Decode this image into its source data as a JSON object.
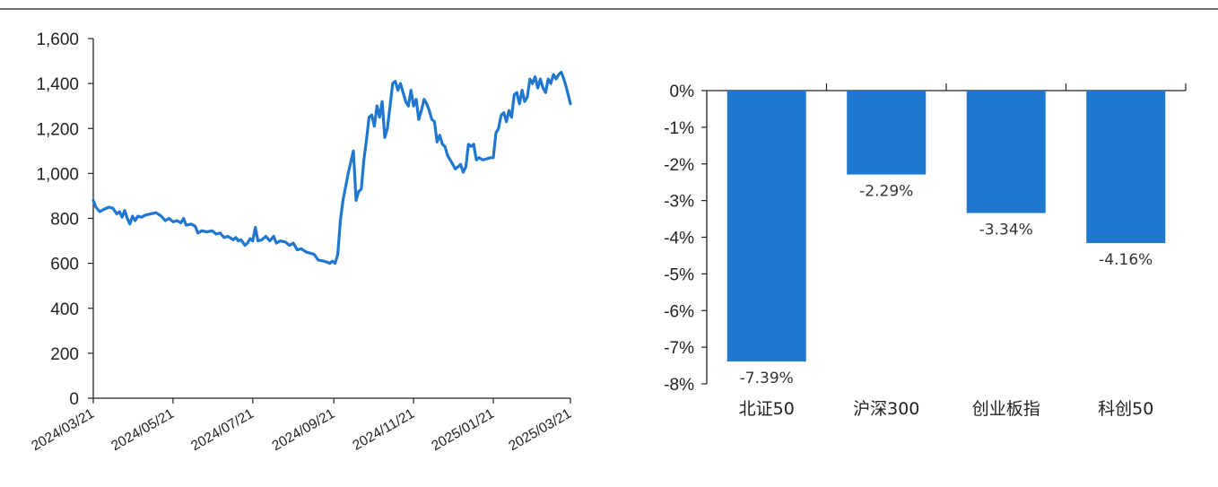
{
  "chart_data": [
    {
      "type": "line",
      "title": "",
      "xlabel": "",
      "ylabel": "",
      "ylim": [
        0,
        1600
      ],
      "yticks": [
        0,
        200,
        400,
        600,
        800,
        1000,
        1200,
        1400,
        1600
      ],
      "ytick_labels": [
        "0",
        "200",
        "400",
        "600",
        "800",
        "1,000",
        "1,200",
        "1,400",
        "1,600"
      ],
      "xticks": [
        "2024/03/21",
        "2024/05/21",
        "2024/07/21",
        "2024/09/21",
        "2024/11/21",
        "2025/01/21",
        "2025/03/21"
      ],
      "grid": false,
      "line_color": "#1f77d0",
      "series": [
        {
          "points": [
            [
              "2024/03/21",
              880
            ],
            [
              "2024/03/23",
              850
            ],
            [
              "2024/03/26",
              830
            ],
            [
              "2024/03/29",
              840
            ],
            [
              "2024/04/02",
              850
            ],
            [
              "2024/04/05",
              845
            ],
            [
              "2024/04/08",
              820
            ],
            [
              "2024/04/10",
              830
            ],
            [
              "2024/04/12",
              805
            ],
            [
              "2024/04/14",
              835
            ],
            [
              "2024/04/16",
              800
            ],
            [
              "2024/04/18",
              775
            ],
            [
              "2024/04/20",
              810
            ],
            [
              "2024/04/22",
              790
            ],
            [
              "2024/04/24",
              810
            ],
            [
              "2024/04/27",
              805
            ],
            [
              "2024/04/30",
              815
            ],
            [
              "2024/05/04",
              820
            ],
            [
              "2024/05/08",
              825
            ],
            [
              "2024/05/12",
              810
            ],
            [
              "2024/05/15",
              790
            ],
            [
              "2024/05/18",
              800
            ],
            [
              "2024/05/21",
              785
            ],
            [
              "2024/05/24",
              790
            ],
            [
              "2024/05/27",
              780
            ],
            [
              "2024/05/29",
              800
            ],
            [
              "2024/05/31",
              770
            ],
            [
              "2024/06/04",
              775
            ],
            [
              "2024/06/07",
              765
            ],
            [
              "2024/06/09",
              735
            ],
            [
              "2024/06/12",
              745
            ],
            [
              "2024/06/16",
              740
            ],
            [
              "2024/06/20",
              745
            ],
            [
              "2024/06/23",
              730
            ],
            [
              "2024/06/26",
              735
            ],
            [
              "2024/06/29",
              715
            ],
            [
              "2024/07/02",
              720
            ],
            [
              "2024/07/06",
              705
            ],
            [
              "2024/07/08",
              715
            ],
            [
              "2024/07/10",
              700
            ],
            [
              "2024/07/12",
              705
            ],
            [
              "2024/07/15",
              680
            ],
            [
              "2024/07/17",
              690
            ],
            [
              "2024/07/19",
              710
            ],
            [
              "2024/07/21",
              700
            ],
            [
              "2024/07/23",
              760
            ],
            [
              "2024/07/25",
              700
            ],
            [
              "2024/07/28",
              705
            ],
            [
              "2024/07/31",
              720
            ],
            [
              "2024/08/03",
              700
            ],
            [
              "2024/08/06",
              720
            ],
            [
              "2024/08/08",
              690
            ],
            [
              "2024/08/11",
              700
            ],
            [
              "2024/08/15",
              695
            ],
            [
              "2024/08/18",
              680
            ],
            [
              "2024/08/21",
              690
            ],
            [
              "2024/08/24",
              660
            ],
            [
              "2024/08/27",
              665
            ],
            [
              "2024/08/31",
              650
            ],
            [
              "2024/09/03",
              645
            ],
            [
              "2024/09/06",
              640
            ],
            [
              "2024/09/09",
              615
            ],
            [
              "2024/09/13",
              610
            ],
            [
              "2024/09/16",
              605
            ],
            [
              "2024/09/18",
              600
            ],
            [
              "2024/09/20",
              610
            ],
            [
              "2024/09/22",
              600
            ],
            [
              "2024/09/24",
              640
            ],
            [
              "2024/09/26",
              790
            ],
            [
              "2024/09/28",
              880
            ],
            [
              "2024/09/30",
              940
            ],
            [
              "2024/10/02",
              1000
            ],
            [
              "2024/10/04",
              1050
            ],
            [
              "2024/10/06",
              1100
            ],
            [
              "2024/10/08",
              880
            ],
            [
              "2024/10/10",
              920
            ],
            [
              "2024/10/12",
              930
            ],
            [
              "2024/10/14",
              1060
            ],
            [
              "2024/10/16",
              1150
            ],
            [
              "2024/10/18",
              1250
            ],
            [
              "2024/10/20",
              1260
            ],
            [
              "2024/10/22",
              1210
            ],
            [
              "2024/10/24",
              1300
            ],
            [
              "2024/10/26",
              1250
            ],
            [
              "2024/10/28",
              1320
            ],
            [
              "2024/10/30",
              1160
            ],
            [
              "2024/11/01",
              1200
            ],
            [
              "2024/11/03",
              1300
            ],
            [
              "2024/11/05",
              1400
            ],
            [
              "2024/11/07",
              1410
            ],
            [
              "2024/11/09",
              1370
            ],
            [
              "2024/11/11",
              1400
            ],
            [
              "2024/11/13",
              1360
            ],
            [
              "2024/11/15",
              1320
            ],
            [
              "2024/11/17",
              1300
            ],
            [
              "2024/11/19",
              1370
            ],
            [
              "2024/11/21",
              1300
            ],
            [
              "2024/11/23",
              1330
            ],
            [
              "2024/11/25",
              1240
            ],
            [
              "2024/11/27",
              1280
            ],
            [
              "2024/11/29",
              1330
            ],
            [
              "2024/12/01",
              1310
            ],
            [
              "2024/12/03",
              1280
            ],
            [
              "2024/12/05",
              1240
            ],
            [
              "2024/12/07",
              1230
            ],
            [
              "2024/12/09",
              1140
            ],
            [
              "2024/12/11",
              1170
            ],
            [
              "2024/12/13",
              1130
            ],
            [
              "2024/12/15",
              1120
            ],
            [
              "2024/12/17",
              1080
            ],
            [
              "2024/12/19",
              1060
            ],
            [
              "2024/12/21",
              1040
            ],
            [
              "2024/12/23",
              1020
            ],
            [
              "2024/12/25",
              1030
            ],
            [
              "2024/12/27",
              1040
            ],
            [
              "2024/12/29",
              1005
            ],
            [
              "2024/12/31",
              1030
            ],
            [
              "2025/01/02",
              1130
            ],
            [
              "2025/01/04",
              1120
            ],
            [
              "2025/01/06",
              1130
            ],
            [
              "2025/01/08",
              1060
            ],
            [
              "2025/01/10",
              1070
            ],
            [
              "2025/01/13",
              1060
            ],
            [
              "2025/01/16",
              1065
            ],
            [
              "2025/01/19",
              1070
            ],
            [
              "2025/01/21",
              1070
            ],
            [
              "2025/01/23",
              1180
            ],
            [
              "2025/01/25",
              1200
            ],
            [
              "2025/01/27",
              1260
            ],
            [
              "2025/01/29",
              1270
            ],
            [
              "2025/01/31",
              1230
            ],
            [
              "2025/02/02",
              1280
            ],
            [
              "2025/02/04",
              1250
            ],
            [
              "2025/02/06",
              1350
            ],
            [
              "2025/02/08",
              1360
            ],
            [
              "2025/02/10",
              1310
            ],
            [
              "2025/02/12",
              1370
            ],
            [
              "2025/02/14",
              1320
            ],
            [
              "2025/02/16",
              1340
            ],
            [
              "2025/02/18",
              1420
            ],
            [
              "2025/02/20",
              1400
            ],
            [
              "2025/02/22",
              1430
            ],
            [
              "2025/02/24",
              1380
            ],
            [
              "2025/02/26",
              1420
            ],
            [
              "2025/02/28",
              1380
            ],
            [
              "2025/03/02",
              1360
            ],
            [
              "2025/03/04",
              1420
            ],
            [
              "2025/03/06",
              1400
            ],
            [
              "2025/03/08",
              1440
            ],
            [
              "2025/03/10",
              1420
            ],
            [
              "2025/03/12",
              1440
            ],
            [
              "2025/03/14",
              1450
            ],
            [
              "2025/03/16",
              1420
            ],
            [
              "2025/03/18",
              1380
            ],
            [
              "2025/03/21",
              1310
            ]
          ]
        }
      ]
    },
    {
      "type": "bar",
      "title": "",
      "xlabel": "",
      "ylabel": "",
      "categories": [
        "北证50",
        "沪深300",
        "创业板指",
        "科创50"
      ],
      "values": [
        -7.39,
        -2.29,
        -3.34,
        -4.16
      ],
      "value_labels": [
        "-7.39%",
        "-2.29%",
        "-3.34%",
        "-4.16%"
      ],
      "ylim": [
        -8,
        0
      ],
      "yticks": [
        0,
        -1,
        -2,
        -3,
        -4,
        -5,
        -6,
        -7,
        -8
      ],
      "ytick_labels": [
        "0%",
        "-1%",
        "-2%",
        "-3%",
        "-4%",
        "-5%",
        "-6%",
        "-7%",
        "-8%"
      ],
      "grid": false,
      "bar_color": "#1f77d0"
    }
  ]
}
